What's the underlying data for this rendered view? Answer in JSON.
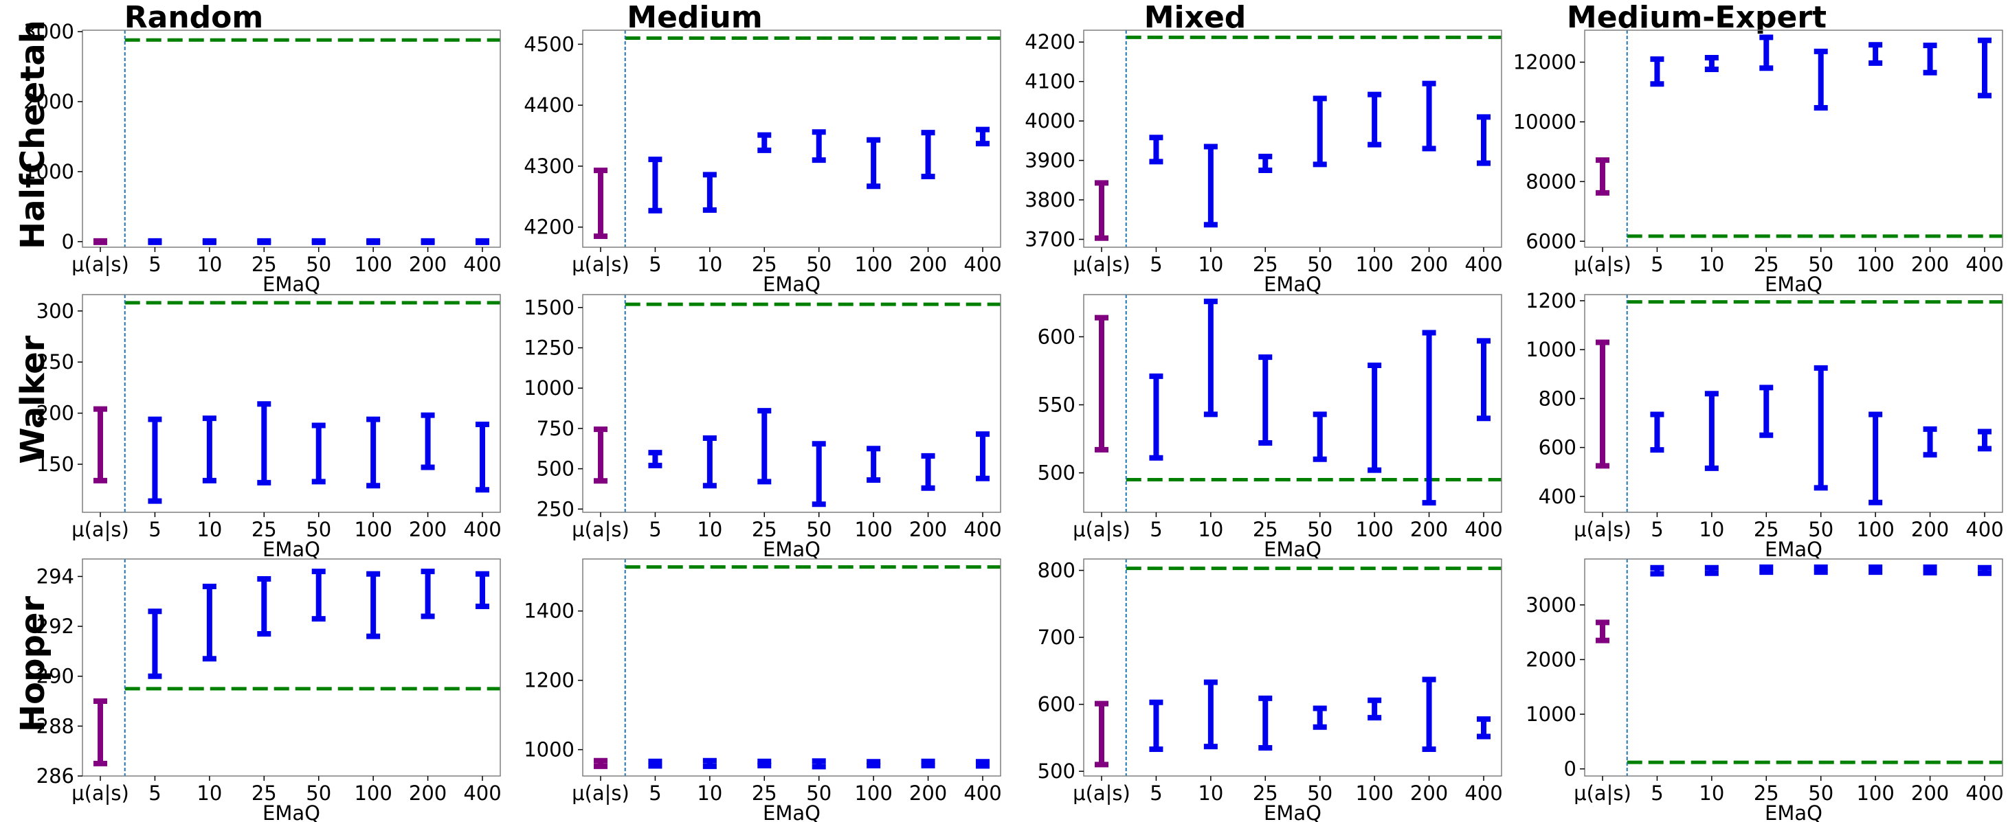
{
  "columns": [
    "Random",
    "Medium",
    "Mixed",
    "Medium-Expert"
  ],
  "rows": [
    "HalfCheetah",
    "Walker",
    "Hopper"
  ],
  "colors": {
    "baseline": "#800080",
    "emaq": "#0000ee",
    "reference_line": "#008000",
    "divider": "#1f77b4",
    "frame": "#7f7f7f"
  },
  "chart_data": [
    {
      "id": "halfcheetah-random",
      "type": "errorbar",
      "row": "HalfCheetah",
      "column": "Random",
      "xlabel": "EMaQ",
      "categories": [
        "μ(a|s)",
        "5",
        "10",
        "25",
        "50",
        "100",
        "200",
        "400"
      ],
      "ylim": [
        -80,
        3020
      ],
      "yticks": [
        0,
        1000,
        2000,
        3000
      ],
      "yticklabels": [
        "0",
        "1000",
        "2000",
        "3000"
      ],
      "reference_line": 2880,
      "baseline": {
        "low": -10,
        "high": 10
      },
      "emaq": [
        {
          "low": -10,
          "high": 10
        },
        {
          "low": -10,
          "high": 10
        },
        {
          "low": -10,
          "high": 10
        },
        {
          "low": -10,
          "high": 10
        },
        {
          "low": -10,
          "high": 10
        },
        {
          "low": -10,
          "high": 10
        },
        {
          "low": -10,
          "high": 10
        }
      ]
    },
    {
      "id": "halfcheetah-medium",
      "type": "errorbar",
      "row": "HalfCheetah",
      "column": "Medium",
      "xlabel": "EMaQ",
      "categories": [
        "μ(a|s)",
        "5",
        "10",
        "25",
        "50",
        "100",
        "200",
        "400"
      ],
      "ylim": [
        4167,
        4523
      ],
      "yticks": [
        4200,
        4300,
        4400,
        4500
      ],
      "yticklabels": [
        "4200",
        "4300",
        "4400",
        "4500"
      ],
      "reference_line": 4510,
      "baseline": {
        "low": 4185,
        "high": 4293
      },
      "emaq": [
        {
          "low": 4227,
          "high": 4311
        },
        {
          "low": 4228,
          "high": 4286
        },
        {
          "low": 4326,
          "high": 4351
        },
        {
          "low": 4310,
          "high": 4356
        },
        {
          "low": 4267,
          "high": 4343
        },
        {
          "low": 4283,
          "high": 4355
        },
        {
          "low": 4337,
          "high": 4360
        }
      ]
    },
    {
      "id": "halfcheetah-mixed",
      "type": "errorbar",
      "row": "HalfCheetah",
      "column": "Mixed",
      "xlabel": "EMaQ",
      "categories": [
        "μ(a|s)",
        "5",
        "10",
        "25",
        "50",
        "100",
        "200",
        "400"
      ],
      "ylim": [
        3680,
        4230
      ],
      "yticks": [
        3700,
        3800,
        3900,
        4000,
        4100,
        4200
      ],
      "yticklabels": [
        "3700",
        "3800",
        "3900",
        "4000",
        "4100",
        "4200"
      ],
      "reference_line": 4212,
      "baseline": {
        "low": 3703,
        "high": 3843
      },
      "emaq": [
        {
          "low": 3897,
          "high": 3958
        },
        {
          "low": 3737,
          "high": 3935
        },
        {
          "low": 3875,
          "high": 3910
        },
        {
          "low": 3890,
          "high": 4057
        },
        {
          "low": 3940,
          "high": 4067
        },
        {
          "low": 3930,
          "high": 4095
        },
        {
          "low": 3893,
          "high": 4010
        }
      ]
    },
    {
      "id": "halfcheetah-medium-expert",
      "type": "errorbar",
      "row": "HalfCheetah",
      "column": "Medium-Expert",
      "xlabel": "EMaQ",
      "categories": [
        "μ(a|s)",
        "5",
        "10",
        "25",
        "50",
        "100",
        "200",
        "400"
      ],
      "ylim": [
        5800,
        13070
      ],
      "yticks": [
        6000,
        8000,
        10000,
        12000
      ],
      "yticklabels": [
        "6000",
        "8000",
        "10000",
        "12000"
      ],
      "reference_line": 6170,
      "baseline": {
        "low": 7620,
        "high": 8720
      },
      "emaq": [
        {
          "low": 11270,
          "high": 12100
        },
        {
          "low": 11760,
          "high": 12150
        },
        {
          "low": 11800,
          "high": 12830
        },
        {
          "low": 10470,
          "high": 12360
        },
        {
          "low": 11970,
          "high": 12580
        },
        {
          "low": 11650,
          "high": 12560
        },
        {
          "low": 10880,
          "high": 12730
        }
      ]
    },
    {
      "id": "walker-random",
      "type": "errorbar",
      "row": "Walker",
      "column": "Random",
      "xlabel": "EMaQ",
      "categories": [
        "μ(a|s)",
        "5",
        "10",
        "25",
        "50",
        "100",
        "200",
        "400"
      ],
      "ylim": [
        103,
        316
      ],
      "yticks": [
        150,
        200,
        250,
        300
      ],
      "yticklabels": [
        "150",
        "200",
        "250",
        "300"
      ],
      "reference_line": 308,
      "baseline": {
        "low": 134,
        "high": 204
      },
      "emaq": [
        {
          "low": 114,
          "high": 194
        },
        {
          "low": 134,
          "high": 195
        },
        {
          "low": 132,
          "high": 209
        },
        {
          "low": 133,
          "high": 188
        },
        {
          "low": 129,
          "high": 194
        },
        {
          "low": 147,
          "high": 198
        },
        {
          "low": 125,
          "high": 189
        }
      ]
    },
    {
      "id": "walker-medium",
      "type": "errorbar",
      "row": "Walker",
      "column": "Medium",
      "xlabel": "EMaQ",
      "categories": [
        "μ(a|s)",
        "5",
        "10",
        "25",
        "50",
        "100",
        "200",
        "400"
      ],
      "ylim": [
        230,
        1580
      ],
      "yticks": [
        250,
        500,
        750,
        1000,
        1250,
        1500
      ],
      "yticklabels": [
        "250",
        "500",
        "750",
        "1000",
        "1250",
        "1500"
      ],
      "reference_line": 1520,
      "baseline": {
        "low": 425,
        "high": 745
      },
      "emaq": [
        {
          "low": 520,
          "high": 600
        },
        {
          "low": 395,
          "high": 690
        },
        {
          "low": 420,
          "high": 860
        },
        {
          "low": 280,
          "high": 655
        },
        {
          "low": 430,
          "high": 625
        },
        {
          "low": 380,
          "high": 580
        },
        {
          "low": 440,
          "high": 715
        }
      ]
    },
    {
      "id": "walker-mixed",
      "type": "errorbar",
      "row": "Walker",
      "column": "Mixed",
      "xlabel": "EMaQ",
      "categories": [
        "μ(a|s)",
        "5",
        "10",
        "25",
        "50",
        "100",
        "200",
        "400"
      ],
      "ylim": [
        471,
        631
      ],
      "yticks": [
        500,
        550,
        600
      ],
      "yticklabels": [
        "500",
        "550",
        "600"
      ],
      "reference_line": 495,
      "baseline": {
        "low": 517,
        "high": 614
      },
      "emaq": [
        {
          "low": 511,
          "high": 571
        },
        {
          "low": 543,
          "high": 626
        },
        {
          "low": 522,
          "high": 585
        },
        {
          "low": 510,
          "high": 543
        },
        {
          "low": 502,
          "high": 579
        },
        {
          "low": 478,
          "high": 603
        },
        {
          "low": 540,
          "high": 597
        }
      ]
    },
    {
      "id": "walker-medium-expert",
      "type": "errorbar",
      "row": "Walker",
      "column": "Medium-Expert",
      "xlabel": "EMaQ",
      "categories": [
        "μ(a|s)",
        "5",
        "10",
        "25",
        "50",
        "100",
        "200",
        "400"
      ],
      "ylim": [
        335,
        1225
      ],
      "yticks": [
        400,
        600,
        800,
        1000,
        1200
      ],
      "yticklabels": [
        "400",
        "600",
        "800",
        "1000",
        "1200"
      ],
      "reference_line": 1195,
      "baseline": {
        "low": 525,
        "high": 1030
      },
      "emaq": [
        {
          "low": 590,
          "high": 735
        },
        {
          "low": 515,
          "high": 820
        },
        {
          "low": 650,
          "high": 845
        },
        {
          "low": 435,
          "high": 925
        },
        {
          "low": 375,
          "high": 735
        },
        {
          "low": 570,
          "high": 675
        },
        {
          "low": 595,
          "high": 665
        }
      ]
    },
    {
      "id": "hopper-random",
      "type": "errorbar",
      "row": "Hopper",
      "column": "Random",
      "xlabel": "EMaQ",
      "categories": [
        "μ(a|s)",
        "5",
        "10",
        "25",
        "50",
        "100",
        "200",
        "400"
      ],
      "ylim": [
        286,
        294.7
      ],
      "yticks": [
        286,
        288,
        290,
        292,
        294
      ],
      "yticklabels": [
        "286",
        "288",
        "290",
        "292",
        "294"
      ],
      "reference_line": 289.5,
      "baseline": {
        "low": 286.5,
        "high": 289.0
      },
      "emaq": [
        {
          "low": 290.0,
          "high": 292.6
        },
        {
          "low": 290.7,
          "high": 293.6
        },
        {
          "low": 291.7,
          "high": 293.9
        },
        {
          "low": 292.3,
          "high": 294.2
        },
        {
          "low": 291.6,
          "high": 294.1
        },
        {
          "low": 292.4,
          "high": 294.2
        },
        {
          "low": 292.8,
          "high": 294.1
        }
      ]
    },
    {
      "id": "hopper-medium",
      "type": "errorbar",
      "row": "Hopper",
      "column": "Medium",
      "xlabel": "EMaQ",
      "categories": [
        "μ(a|s)",
        "5",
        "10",
        "25",
        "50",
        "100",
        "200",
        "400"
      ],
      "ylim": [
        924,
        1550
      ],
      "yticks": [
        1000,
        1200,
        1400
      ],
      "yticklabels": [
        "1000",
        "1200",
        "1400"
      ],
      "reference_line": 1527,
      "baseline": {
        "low": 952,
        "high": 968
      },
      "emaq": [
        {
          "low": 953,
          "high": 966
        },
        {
          "low": 952,
          "high": 968
        },
        {
          "low": 954,
          "high": 966
        },
        {
          "low": 951,
          "high": 967
        },
        {
          "low": 954,
          "high": 965
        },
        {
          "low": 954,
          "high": 966
        },
        {
          "low": 953,
          "high": 965
        }
      ]
    },
    {
      "id": "hopper-mixed",
      "type": "errorbar",
      "row": "Hopper",
      "column": "Mixed",
      "xlabel": "EMaQ",
      "categories": [
        "μ(a|s)",
        "5",
        "10",
        "25",
        "50",
        "100",
        "200",
        "400"
      ],
      "ylim": [
        493,
        817
      ],
      "yticks": [
        500,
        600,
        700,
        800
      ],
      "yticklabels": [
        "500",
        "600",
        "700",
        "800"
      ],
      "reference_line": 803,
      "baseline": {
        "low": 510,
        "high": 601
      },
      "emaq": [
        {
          "low": 533,
          "high": 603
        },
        {
          "low": 537,
          "high": 633
        },
        {
          "low": 535,
          "high": 609
        },
        {
          "low": 566,
          "high": 594
        },
        {
          "low": 580,
          "high": 606
        },
        {
          "low": 533,
          "high": 637
        },
        {
          "low": 552,
          "high": 578
        }
      ]
    },
    {
      "id": "hopper-medium-expert",
      "type": "errorbar",
      "row": "Hopper",
      "column": "Medium-Expert",
      "xlabel": "EMaQ",
      "categories": [
        "μ(a|s)",
        "5",
        "10",
        "25",
        "50",
        "100",
        "200",
        "400"
      ],
      "ylim": [
        -130,
        3840
      ],
      "yticks": [
        0,
        1000,
        2000,
        3000
      ],
      "yticklabels": [
        "0",
        "1000",
        "2000",
        "3000"
      ],
      "reference_line": 120,
      "baseline": {
        "low": 2350,
        "high": 2680
      },
      "emaq": [
        {
          "low": 3570,
          "high": 3680
        },
        {
          "low": 3580,
          "high": 3680
        },
        {
          "low": 3600,
          "high": 3690
        },
        {
          "low": 3600,
          "high": 3690
        },
        {
          "low": 3600,
          "high": 3690
        },
        {
          "low": 3590,
          "high": 3690
        },
        {
          "low": 3580,
          "high": 3680
        }
      ]
    }
  ]
}
